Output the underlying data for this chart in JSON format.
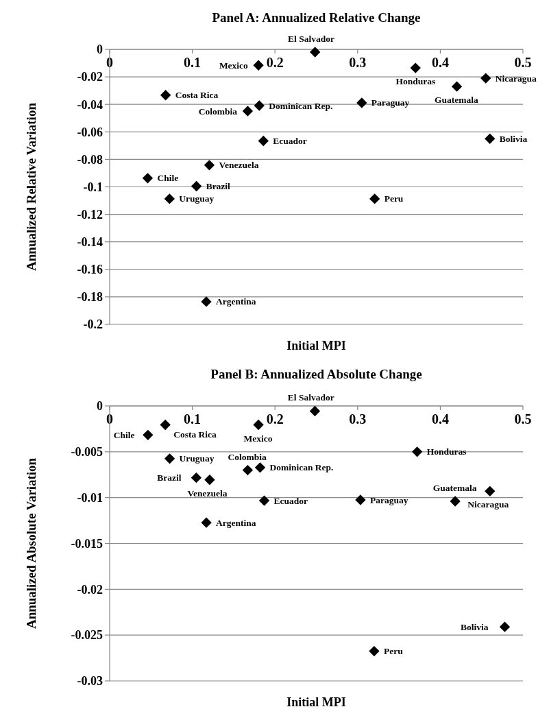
{
  "chart_data": [
    {
      "type": "scatter",
      "title": "Panel A: Annualized Relative Change",
      "xlabel": "Initial MPI",
      "ylabel": "Annualized Relative Variation",
      "x": [
        0.2485,
        0.18,
        0.0677,
        0.181,
        0.167,
        0.186,
        0.1206,
        0.046,
        0.105,
        0.305,
        0.0724,
        0.3206,
        0.1169,
        0.37,
        0.42,
        0.455,
        0.46
      ],
      "series": [
        {
          "color": "#000000",
          "values": [
            -0.002,
            -0.0116,
            -0.0333,
            -0.0409,
            -0.0449,
            -0.0666,
            -0.0842,
            -0.0937,
            -0.0995,
            -0.0389,
            -0.1087,
            -0.1087,
            -0.1835,
            -0.0135,
            -0.027,
            -0.021,
            -0.065
          ]
        }
      ],
      "xlim": [
        0,
        0.5
      ],
      "xticks": [
        0,
        0.1,
        0.2,
        0.3,
        0.4,
        0.5
      ],
      "ylim": [
        -0.2,
        0
      ],
      "yticks": [
        0,
        -0.02,
        -0.04,
        -0.06,
        -0.08,
        -0.1,
        -0.12,
        -0.14,
        -0.16,
        -0.18,
        -0.2
      ],
      "grid": "y",
      "marker": "diamond",
      "annotations": [
        {
          "text": "El Salvador",
          "x": 0.2485,
          "y": -0.002
        },
        {
          "text": "Mexico",
          "x": 0.18,
          "y": -0.0116
        },
        {
          "text": "Costa Rica",
          "x": 0.0677,
          "y": -0.0333
        },
        {
          "text": "Dominican Rep.",
          "x": 0.181,
          "y": -0.0409
        },
        {
          "text": "Colombia",
          "x": 0.167,
          "y": -0.0449
        },
        {
          "text": "Ecuador",
          "x": 0.186,
          "y": -0.0666
        },
        {
          "text": "Venezuela",
          "x": 0.1206,
          "y": -0.0842
        },
        {
          "text": "Chile",
          "x": 0.046,
          "y": -0.0937
        },
        {
          "text": "Brazil",
          "x": 0.105,
          "y": -0.0995
        },
        {
          "text": "Paraguay",
          "x": 0.305,
          "y": -0.0389
        },
        {
          "text": "Uruguay",
          "x": 0.0724,
          "y": -0.1087
        },
        {
          "text": "Peru",
          "x": 0.3206,
          "y": -0.1087
        },
        {
          "text": "Argentina",
          "x": 0.1169,
          "y": -0.1835
        },
        {
          "text": "Honduras",
          "x": 0.37,
          "y": -0.0135
        },
        {
          "text": "Guatemala",
          "x": 0.42,
          "y": -0.027
        },
        {
          "text": "Nicaragua",
          "x": 0.455,
          "y": -0.021
        },
        {
          "text": "Bolivia",
          "x": 0.46,
          "y": -0.065
        }
      ]
    },
    {
      "type": "scatter",
      "title": "Panel B: Annualized Absolute Change",
      "xlabel": "Initial MPI",
      "ylabel": "Annualized Absolute Variation",
      "x": [
        0.2483,
        0.0673,
        0.18,
        0.0463,
        0.0726,
        0.182,
        0.167,
        0.1048,
        0.121,
        0.187,
        0.3034,
        0.117,
        0.32,
        0.372,
        0.418,
        0.46,
        0.478
      ],
      "series": [
        {
          "color": "#000000",
          "values": [
            -0.00056,
            -0.00206,
            -0.00206,
            -0.00317,
            -0.00575,
            -0.00672,
            -0.007,
            -0.00783,
            -0.00806,
            -0.01033,
            -0.01025,
            -0.01273,
            -0.02675,
            -0.005,
            -0.0104,
            -0.0093,
            -0.0241
          ]
        }
      ],
      "xlim": [
        0,
        0.5
      ],
      "xticks": [
        0,
        0.1,
        0.2,
        0.3,
        0.4,
        0.5
      ],
      "ylim": [
        -0.03,
        0
      ],
      "yticks": [
        0,
        -0.005,
        -0.01,
        -0.015,
        -0.02,
        -0.025,
        -0.03
      ],
      "grid": "y",
      "marker": "diamond",
      "annotations": [
        {
          "text": "El Salvador",
          "x": 0.2483,
          "y": -0.00056
        },
        {
          "text": "Costa Rica",
          "x": 0.0673,
          "y": -0.00206
        },
        {
          "text": "Mexico",
          "x": 0.18,
          "y": -0.00206
        },
        {
          "text": "Chile",
          "x": 0.0463,
          "y": -0.00317
        },
        {
          "text": "Uruguay",
          "x": 0.0726,
          "y": -0.00575
        },
        {
          "text": "Dominican Rep.",
          "x": 0.182,
          "y": -0.00672
        },
        {
          "text": "Colombia",
          "x": 0.167,
          "y": -0.007
        },
        {
          "text": "Brazil",
          "x": 0.1048,
          "y": -0.00783
        },
        {
          "text": "Venezuela",
          "x": 0.121,
          "y": -0.00806
        },
        {
          "text": "Ecuador",
          "x": 0.187,
          "y": -0.01033
        },
        {
          "text": "Paraguay",
          "x": 0.3034,
          "y": -0.01025
        },
        {
          "text": "Argentina",
          "x": 0.117,
          "y": -0.01273
        },
        {
          "text": "Peru",
          "x": 0.32,
          "y": -0.02675
        },
        {
          "text": "Honduras",
          "x": 0.372,
          "y": -0.005
        },
        {
          "text": "Guatemala",
          "x": 0.418,
          "y": -0.0104
        },
        {
          "text": "Nicaragua",
          "x": 0.46,
          "y": -0.0093
        },
        {
          "text": "Bolivia",
          "x": 0.478,
          "y": -0.0241
        }
      ]
    }
  ]
}
